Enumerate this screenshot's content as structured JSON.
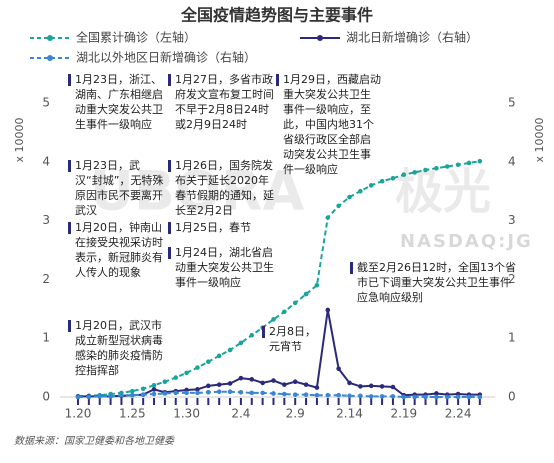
{
  "chart_data": {
    "type": "line",
    "title": "全国疫情趋势图与主要事件",
    "source": "数据来源：国家卫健委和各地卫健委",
    "y_label": "x 10000",
    "y2_label": "x 10000",
    "watermark": [
      "UBORA",
      "极光",
      "NASDAQ:JG"
    ],
    "categories": [
      "1.20",
      null,
      null,
      null,
      null,
      "1.25",
      null,
      null,
      null,
      null,
      "1.30",
      null,
      null,
      null,
      null,
      "2.4",
      null,
      null,
      null,
      null,
      "2.9",
      null,
      null,
      null,
      null,
      "2.14",
      null,
      null,
      null,
      null,
      "2.19",
      null,
      null,
      null,
      null,
      "2.24",
      null,
      null
    ],
    "ylim": [
      0,
      5
    ],
    "yticks": [
      0,
      1,
      2,
      3,
      4,
      5
    ],
    "y2lim": [
      0,
      5
    ],
    "y2ticks": [
      0,
      1,
      2,
      3,
      4,
      5
    ],
    "series": [
      {
        "name": "全国累计确诊（左轴）",
        "color": "#1aa59a",
        "dash": true,
        "values": [
          0.01,
          0.02,
          0.03,
          0.05,
          0.07,
          0.1,
          0.14,
          0.2,
          0.26,
          0.33,
          0.41,
          0.5,
          0.6,
          0.7,
          0.8,
          0.92,
          1.05,
          1.18,
          1.32,
          1.45,
          1.6,
          1.75,
          1.9,
          3.05,
          3.25,
          3.4,
          3.5,
          3.6,
          3.67,
          3.72,
          3.78,
          3.82,
          3.86,
          3.89,
          3.92,
          3.95,
          3.98,
          4.01
        ]
      },
      {
        "name": "湖北日新增确诊（右轴）",
        "color": "#2b2a7a",
        "axis": "y2",
        "dash": false,
        "values": [
          0.01,
          0.01,
          0.01,
          0.01,
          0.02,
          0.03,
          0.04,
          0.13,
          0.08,
          0.1,
          0.12,
          0.13,
          0.19,
          0.21,
          0.23,
          0.32,
          0.3,
          0.24,
          0.28,
          0.21,
          0.26,
          0.21,
          0.16,
          1.48,
          0.48,
          0.24,
          0.18,
          0.19,
          0.18,
          0.17,
          0.03,
          0.04,
          0.04,
          0.06,
          0.04,
          0.05,
          0.04,
          0.04
        ]
      },
      {
        "name": "湖北以外地区日新增确诊（右轴）",
        "color": "#3a86d6",
        "axis": "y2",
        "dash": true,
        "values": [
          0.0,
          0.0,
          0.01,
          0.01,
          0.03,
          0.03,
          0.04,
          0.05,
          0.06,
          0.07,
          0.07,
          0.07,
          0.08,
          0.09,
          0.09,
          0.08,
          0.07,
          0.07,
          0.06,
          0.05,
          0.04,
          0.04,
          0.03,
          0.03,
          0.03,
          0.02,
          0.02,
          0.01,
          0.01,
          0.01,
          0.0,
          0.0,
          0.0,
          0.0,
          0.0,
          0.0,
          0.0,
          0.0
        ]
      }
    ],
    "annotations": [
      "1月23日，浙江、湖南、广东相继启动重大突发公共卫生事件一级响应",
      "1月23日，武汉“封城”，无特殊原因市民不要离开武汉",
      "1月20日，钟南山在接受央视采访时表示，新冠肺炎有人传人的现象",
      "1月20日，武汉市成立新型冠状病毒感染的肺炎疫情防控指挥部",
      "1月27日，多省市政府发文宣布复工时间不早于2月8日24时或2月9日24时",
      "1月26日，国务院发布关于延长2020年春节假期的通知，延长至2月2日",
      "1月25日，春节",
      "1月24日，湖北省启动重大突发公共卫生事件一级响应",
      "1月29日，西藏启动重大突发公共卫生事件一级响应，至此，中国内地31个省级行政区全部启动突发公共卫生事件一级响应",
      "2月8日，元宵节",
      "截至2月26日12时，全国13个省市已下调重大突发公共卫生事件应急响应级别"
    ]
  }
}
